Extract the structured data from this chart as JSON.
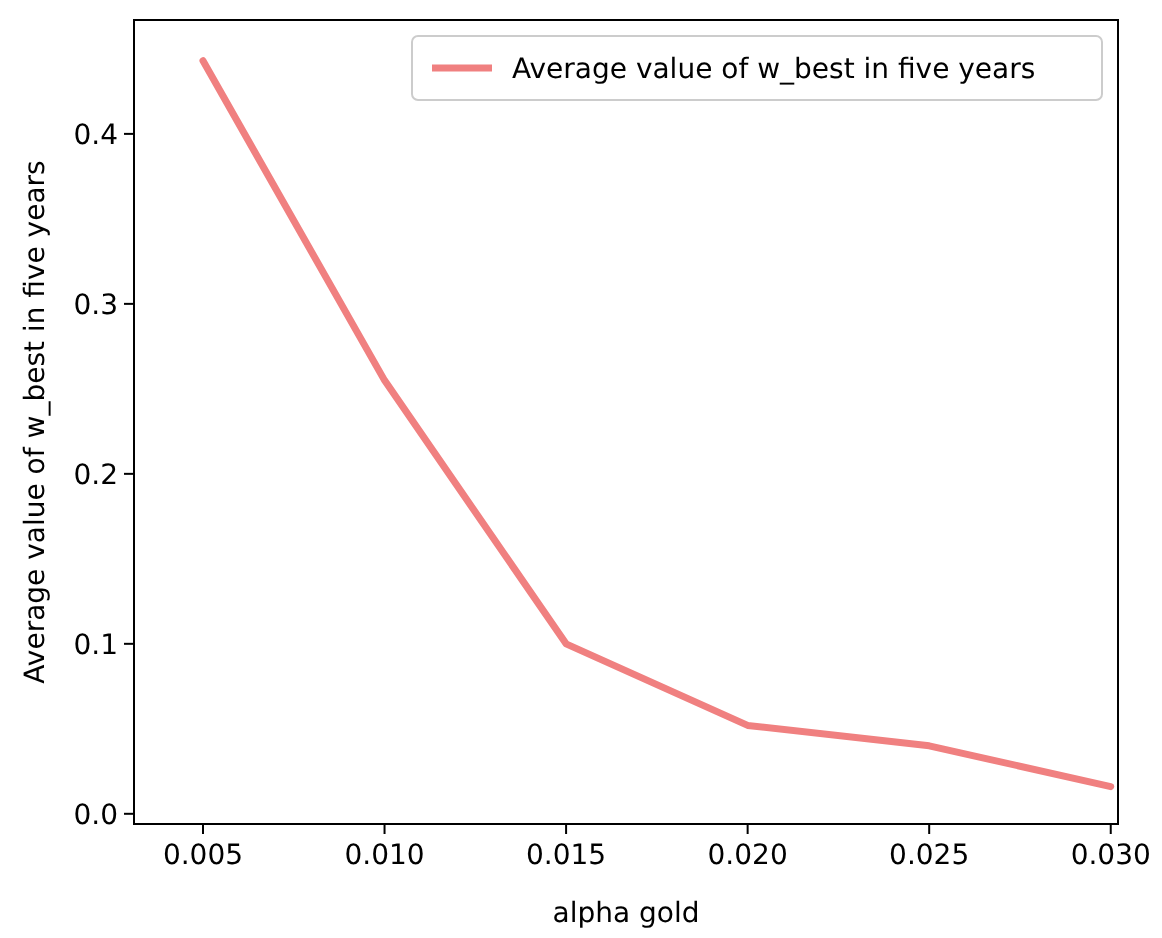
{
  "chart_data": {
    "type": "line",
    "xlabel": "alpha gold",
    "ylabel": "Average value of w_best in five years",
    "x": [
      0.005,
      0.01,
      0.015,
      0.02,
      0.025,
      0.03
    ],
    "series": [
      {
        "name": "Average value of w_best in five years",
        "color": "#f08080",
        "values": [
          0.443,
          0.255,
          0.1,
          0.052,
          0.04,
          0.016
        ]
      }
    ],
    "xlim": [
      0.0031,
      0.0302
    ],
    "ylim": [
      -0.006,
      0.467
    ],
    "xticks": [
      {
        "value": 0.005,
        "label": "0.005"
      },
      {
        "value": 0.01,
        "label": "0.010"
      },
      {
        "value": 0.015,
        "label": "0.015"
      },
      {
        "value": 0.02,
        "label": "0.020"
      },
      {
        "value": 0.025,
        "label": "0.025"
      },
      {
        "value": 0.03,
        "label": "0.030"
      }
    ],
    "yticks": [
      {
        "value": 0,
        "label": "0.0"
      },
      {
        "value": 0.1,
        "label": "0.1"
      },
      {
        "value": 0.2,
        "label": "0.2"
      },
      {
        "value": 0.3,
        "label": "0.3"
      },
      {
        "value": 0.4,
        "label": "0.4"
      }
    ],
    "grid": false,
    "legend": "top right",
    "marker": "none",
    "line_style": "solid"
  }
}
